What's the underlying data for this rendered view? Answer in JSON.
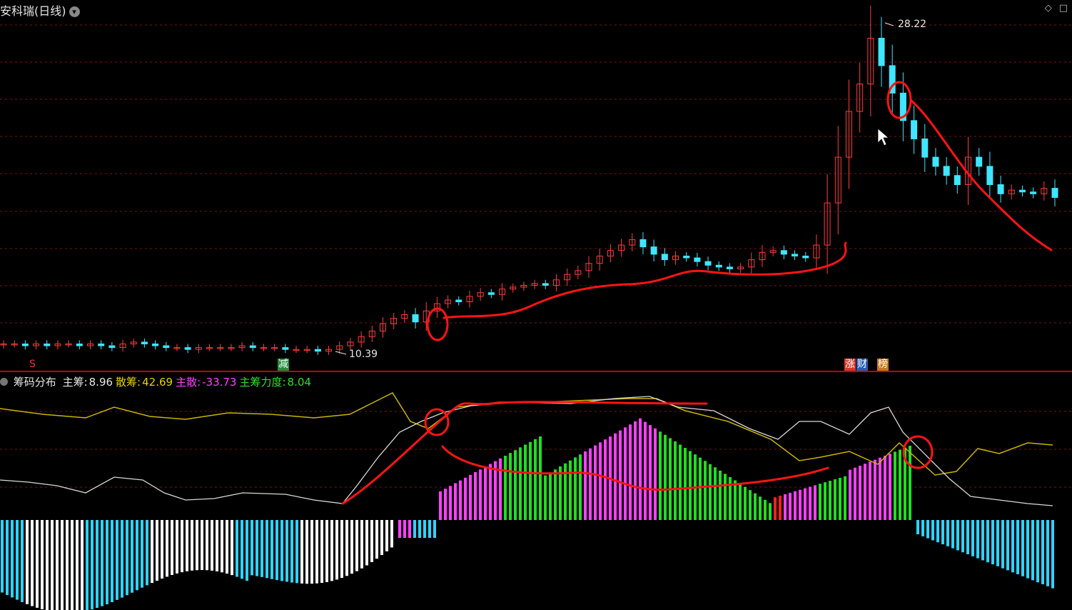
{
  "window": {
    "title": "安科瑞(日线)",
    "title_icon": "chevron-down-icon",
    "corner_icons": [
      "diamond-icon",
      "square-icon"
    ]
  },
  "indicator": {
    "name": "筹码分布",
    "items": [
      {
        "label": "主筹:",
        "value": "8.96",
        "label_color": "#e6e6e6",
        "value_color": "#e6e6e6"
      },
      {
        "label": "散筹:",
        "value": "42.69",
        "label_color": "#e6d200",
        "value_color": "#e6d200"
      },
      {
        "label": "主散:",
        "value": "-33.73",
        "label_color": "#ff40ff",
        "value_color": "#ff40ff"
      },
      {
        "label": "主筹力度:",
        "value": "8.04",
        "label_color": "#2ee02e",
        "value_color": "#2ee02e"
      }
    ]
  },
  "price_labels": {
    "high": "28.22",
    "low": "10.39"
  },
  "signal_badges": [
    {
      "text": "S",
      "color": "#ff3030",
      "bg": "transparent"
    },
    {
      "text": "减",
      "color": "#ffffff",
      "bg": "#1e8f3a"
    },
    {
      "text": "涨",
      "color": "#ffffff",
      "bg": "#d23a2a"
    },
    {
      "text": "财",
      "color": "#ffffff",
      "bg": "#2b5bb5"
    },
    {
      "text": "榜",
      "color": "#ffffff",
      "bg": "#c8781e"
    }
  ],
  "colors": {
    "up": "#ff3c3c",
    "down": "#3ee6ff",
    "grid": "#7a1010",
    "divider": "#c00000",
    "annotation": "#ff1414",
    "yellow_line": "#c8b400",
    "white_line": "#d8d8d8",
    "bar_magenta": "#ff40ff",
    "bar_green": "#22dd22",
    "bar_red": "#ff2020",
    "bar_cyan": "#2ed3ff",
    "bar_white": "#ffffff"
  },
  "chart_data": {
    "type": "candlestick",
    "ohlc_close_path": [
      10.8,
      10.8,
      10.7,
      10.8,
      10.7,
      10.8,
      10.8,
      10.7,
      10.8,
      10.7,
      10.6,
      10.8,
      10.9,
      10.8,
      10.7,
      10.6,
      10.6,
      10.5,
      10.6,
      10.6,
      10.6,
      10.6,
      10.7,
      10.6,
      10.6,
      10.6,
      10.5,
      10.5,
      10.5,
      10.4,
      10.5,
      10.7,
      10.9,
      11.2,
      11.5,
      11.9,
      12.2,
      12.4,
      12.0,
      12.6,
      13.0,
      13.2,
      13.1,
      13.4,
      13.6,
      13.5,
      13.8,
      13.9,
      14.0,
      14.1,
      14.0,
      14.3,
      14.6,
      14.8,
      15.2,
      15.6,
      15.9,
      16.2,
      16.5,
      16.1,
      15.7,
      15.4,
      15.6,
      15.5,
      15.3,
      15.1,
      15.0,
      14.9,
      15.0,
      15.4,
      15.8,
      15.9,
      15.7,
      15.6,
      15.5,
      16.2,
      18.5,
      21.0,
      23.5,
      25.0,
      27.5,
      26.0,
      24.5,
      23.0,
      22.0,
      21.0,
      20.5,
      20.0,
      19.5,
      21.0,
      20.5,
      19.5,
      19.0,
      19.2,
      19.1,
      19.0,
      19.3,
      18.8
    ],
    "price_high": 28.22,
    "price_low": 10.39,
    "indicator_name": "筹码分布",
    "indicator_values": {
      "主筹": 8.96,
      "散筹": 42.69,
      "主散": -33.73,
      "主筹力度": 8.04
    }
  }
}
